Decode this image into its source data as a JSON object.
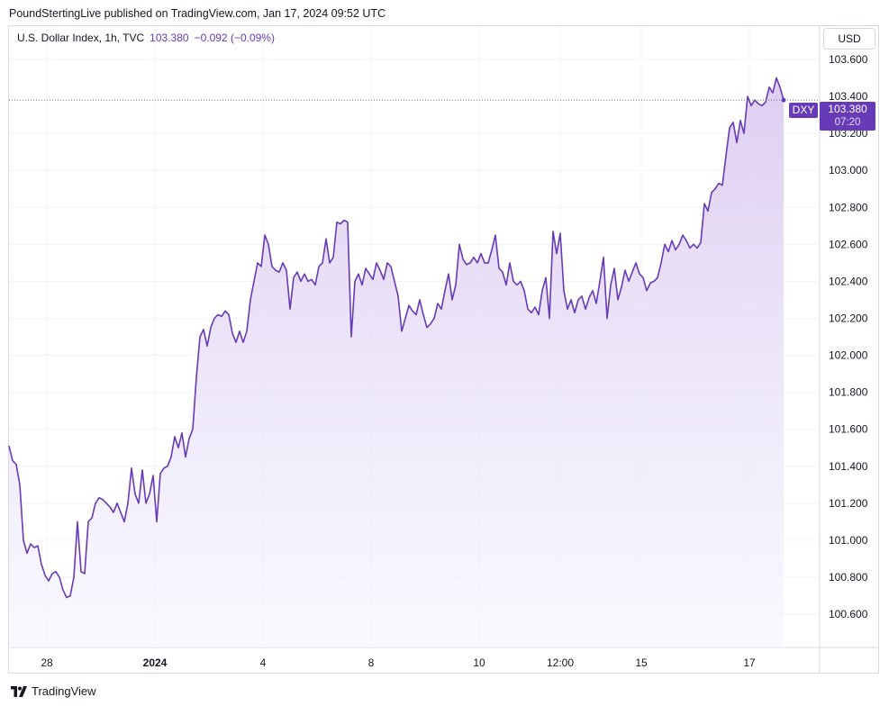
{
  "header": {
    "publisher_text": "PoundStertingLive published on TradingView.com, Jan 17, 2024 09:52 UTC"
  },
  "legend": {
    "symbol": "U.S. Dollar Index, 1h, TVC",
    "last": "103.380",
    "change": "−0.092 (−0.09%)"
  },
  "currency_button": "USD",
  "price_tag": {
    "symbol": "DXY",
    "price": "103.380",
    "countdown": "07:20"
  },
  "footer": {
    "brand": "TradingView"
  },
  "colors": {
    "line": "#673ab7",
    "grid": "#f0f3fa",
    "axis_text": "#131722",
    "fill_top": "#dccbf0",
    "fill_bottom": "#f6f7ff"
  },
  "chart_data": {
    "type": "area",
    "title": "",
    "xlabel": "",
    "ylabel": "",
    "currency": "USD",
    "ylim": [
      100.42,
      103.78
    ],
    "xlim": [
      0,
      225
    ],
    "grid": true,
    "y_ticks": [
      "100.600",
      "100.800",
      "101.000",
      "101.200",
      "101.400",
      "101.600",
      "101.800",
      "102.000",
      "102.200",
      "102.400",
      "102.600",
      "102.800",
      "103.000",
      "103.200",
      "103.400",
      "103.600"
    ],
    "x_ticks": [
      {
        "label": "28",
        "x": 10.5
      },
      {
        "label": "2024",
        "x": 40.5,
        "bold": true
      },
      {
        "label": "4",
        "x": 70.5
      },
      {
        "label": "8",
        "x": 100.5
      },
      {
        "label": "10",
        "x": 130.5
      },
      {
        "label": "12:00",
        "x": 153
      },
      {
        "label": "15",
        "x": 175.5
      },
      {
        "label": "17",
        "x": 205.5
      }
    ],
    "last_price": 103.38,
    "series": [
      {
        "values": [
          [
            0,
            101.51
          ],
          [
            1,
            101.43
          ],
          [
            2,
            101.41
          ],
          [
            3,
            101.3
          ],
          [
            4,
            101.0
          ],
          [
            5,
            100.93
          ],
          [
            6,
            100.98
          ],
          [
            7,
            100.96
          ],
          [
            8,
            100.97
          ],
          [
            9,
            100.87
          ],
          [
            10,
            100.81
          ],
          [
            11,
            100.78
          ],
          [
            12,
            100.82
          ],
          [
            13,
            100.83
          ],
          [
            14,
            100.8
          ],
          [
            15,
            100.73
          ],
          [
            16,
            100.69
          ],
          [
            17,
            100.7
          ],
          [
            18,
            100.8
          ],
          [
            19,
            101.1
          ],
          [
            20,
            100.83
          ],
          [
            21,
            100.82
          ],
          [
            22,
            101.1
          ],
          [
            23,
            101.12
          ],
          [
            24,
            101.2
          ],
          [
            25,
            101.23
          ],
          [
            26,
            101.22
          ],
          [
            27,
            101.2
          ],
          [
            28,
            101.18
          ],
          [
            29,
            101.15
          ],
          [
            30,
            101.2
          ],
          [
            31,
            101.15
          ],
          [
            32,
            101.1
          ],
          [
            33,
            101.2
          ],
          [
            34,
            101.39
          ],
          [
            35,
            101.25
          ],
          [
            36,
            101.2
          ],
          [
            37,
            101.38
          ],
          [
            38,
            101.2
          ],
          [
            39,
            101.25
          ],
          [
            40,
            101.35
          ],
          [
            41,
            101.1
          ],
          [
            42,
            101.36
          ],
          [
            43,
            101.39
          ],
          [
            44,
            101.4
          ],
          [
            45,
            101.45
          ],
          [
            46,
            101.56
          ],
          [
            47,
            101.5
          ],
          [
            48,
            101.58
          ],
          [
            49,
            101.45
          ],
          [
            50,
            101.55
          ],
          [
            51,
            101.6
          ],
          [
            52,
            101.88
          ],
          [
            53,
            102.1
          ],
          [
            54,
            102.14
          ],
          [
            55,
            102.05
          ],
          [
            56,
            102.15
          ],
          [
            57,
            102.2
          ],
          [
            58,
            102.22
          ],
          [
            59,
            102.21
          ],
          [
            60,
            102.24
          ],
          [
            61,
            102.22
          ],
          [
            62,
            102.12
          ],
          [
            63,
            102.07
          ],
          [
            64,
            102.13
          ],
          [
            65,
            102.07
          ],
          [
            66,
            102.13
          ],
          [
            67,
            102.3
          ],
          [
            68,
            102.4
          ],
          [
            69,
            102.5
          ],
          [
            70,
            102.48
          ],
          [
            71,
            102.65
          ],
          [
            72,
            102.6
          ],
          [
            73,
            102.48
          ],
          [
            74,
            102.46
          ],
          [
            75,
            102.45
          ],
          [
            76,
            102.5
          ],
          [
            77,
            102.46
          ],
          [
            78,
            102.25
          ],
          [
            79,
            102.42
          ],
          [
            80,
            102.45
          ],
          [
            81,
            102.4
          ],
          [
            82,
            102.44
          ],
          [
            83,
            102.4
          ],
          [
            84,
            102.41
          ],
          [
            85,
            102.38
          ],
          [
            86,
            102.48
          ],
          [
            87,
            102.5
          ],
          [
            88,
            102.63
          ],
          [
            89,
            102.5
          ],
          [
            90,
            102.53
          ],
          [
            91,
            102.72
          ],
          [
            92,
            102.71
          ],
          [
            93,
            102.73
          ],
          [
            94,
            102.72
          ],
          [
            95,
            102.1
          ],
          [
            96,
            102.4
          ],
          [
            97,
            102.44
          ],
          [
            98,
            102.38
          ],
          [
            99,
            102.47
          ],
          [
            100,
            102.44
          ],
          [
            101,
            102.41
          ],
          [
            102,
            102.5
          ],
          [
            103,
            102.46
          ],
          [
            104,
            102.41
          ],
          [
            105,
            102.5
          ],
          [
            106,
            102.48
          ],
          [
            107,
            102.4
          ],
          [
            108,
            102.32
          ],
          [
            109,
            102.13
          ],
          [
            110,
            102.2
          ],
          [
            111,
            102.27
          ],
          [
            112,
            102.24
          ],
          [
            113,
            102.22
          ],
          [
            114,
            102.3
          ],
          [
            115,
            102.22
          ],
          [
            116,
            102.15
          ],
          [
            117,
            102.17
          ],
          [
            118,
            102.2
          ],
          [
            119,
            102.28
          ],
          [
            120,
            102.25
          ],
          [
            121,
            102.35
          ],
          [
            122,
            102.44
          ],
          [
            123,
            102.3
          ],
          [
            124,
            102.38
          ],
          [
            125,
            102.6
          ],
          [
            126,
            102.52
          ],
          [
            127,
            102.49
          ],
          [
            128,
            102.5
          ],
          [
            129,
            102.53
          ],
          [
            130,
            102.5
          ],
          [
            131,
            102.55
          ],
          [
            132,
            102.5
          ],
          [
            133,
            102.5
          ],
          [
            134,
            102.57
          ],
          [
            135,
            102.65
          ],
          [
            136,
            102.47
          ],
          [
            137,
            102.45
          ],
          [
            138,
            102.38
          ],
          [
            139,
            102.5
          ],
          [
            140,
            102.4
          ],
          [
            141,
            102.38
          ],
          [
            142,
            102.4
          ],
          [
            143,
            102.35
          ],
          [
            144,
            102.25
          ],
          [
            145,
            102.23
          ],
          [
            146,
            102.26
          ],
          [
            147,
            102.22
          ],
          [
            148,
            102.35
          ],
          [
            149,
            102.42
          ],
          [
            150,
            102.2
          ],
          [
            151,
            102.67
          ],
          [
            152,
            102.55
          ],
          [
            153,
            102.66
          ],
          [
            154,
            102.35
          ],
          [
            155,
            102.25
          ],
          [
            156,
            102.3
          ],
          [
            157,
            102.23
          ],
          [
            158,
            102.3
          ],
          [
            159,
            102.32
          ],
          [
            160,
            102.25
          ],
          [
            161,
            102.31
          ],
          [
            162,
            102.35
          ],
          [
            163,
            102.28
          ],
          [
            164,
            102.4
          ],
          [
            165,
            102.53
          ],
          [
            166,
            102.2
          ],
          [
            167,
            102.38
          ],
          [
            168,
            102.47
          ],
          [
            169,
            102.3
          ],
          [
            170,
            102.37
          ],
          [
            171,
            102.46
          ],
          [
            172,
            102.4
          ],
          [
            173,
            102.45
          ],
          [
            174,
            102.5
          ],
          [
            175,
            102.44
          ],
          [
            176,
            102.42
          ],
          [
            177,
            102.35
          ],
          [
            178,
            102.39
          ],
          [
            179,
            102.4
          ],
          [
            180,
            102.42
          ],
          [
            181,
            102.5
          ],
          [
            182,
            102.6
          ],
          [
            183,
            102.56
          ],
          [
            184,
            102.62
          ],
          [
            185,
            102.57
          ],
          [
            186,
            102.6
          ],
          [
            187,
            102.65
          ],
          [
            188,
            102.62
          ],
          [
            189,
            102.58
          ],
          [
            190,
            102.6
          ],
          [
            191,
            102.58
          ],
          [
            192,
            102.61
          ],
          [
            193,
            102.82
          ],
          [
            194,
            102.78
          ],
          [
            195,
            102.88
          ],
          [
            196,
            102.9
          ],
          [
            197,
            102.93
          ],
          [
            198,
            102.92
          ],
          [
            199,
            103.08
          ],
          [
            200,
            103.23
          ],
          [
            201,
            103.26
          ],
          [
            202,
            103.15
          ],
          [
            203,
            103.27
          ],
          [
            204,
            103.2
          ],
          [
            205,
            103.4
          ],
          [
            206,
            103.35
          ],
          [
            207,
            103.38
          ],
          [
            208,
            103.36
          ],
          [
            209,
            103.35
          ],
          [
            210,
            103.37
          ],
          [
            211,
            103.45
          ],
          [
            212,
            103.42
          ],
          [
            213,
            103.5
          ],
          [
            214,
            103.45
          ],
          [
            215,
            103.38
          ]
        ]
      }
    ]
  }
}
